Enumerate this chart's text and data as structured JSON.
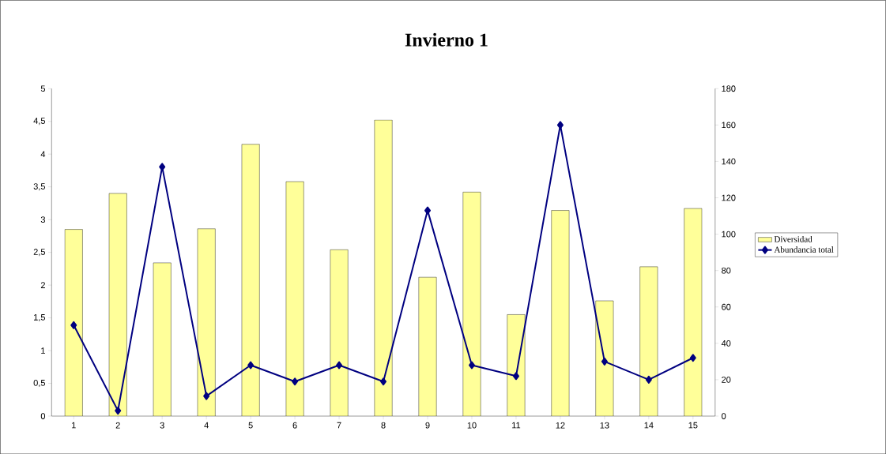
{
  "chart_data": {
    "type": "bar",
    "title": "Invierno 1",
    "categories": [
      "1",
      "2",
      "3",
      "4",
      "5",
      "6",
      "7",
      "8",
      "9",
      "10",
      "11",
      "12",
      "13",
      "14",
      "15"
    ],
    "series": [
      {
        "name": "Diversidad",
        "color": "#ffff99",
        "values": [
          2.85,
          3.4,
          2.34,
          2.86,
          4.15,
          3.58,
          2.54,
          4.52,
          2.12,
          3.42,
          1.55,
          3.14,
          1.76,
          2.28,
          3.17
        ]
      },
      {
        "name": "Abundancia total",
        "type": "line",
        "axis": "y2",
        "color": "#000080",
        "marker": "diamond",
        "values": [
          50,
          3,
          137,
          11,
          28,
          19,
          28,
          19,
          113,
          28,
          22,
          160,
          30,
          20,
          32
        ]
      }
    ],
    "ylim": [
      0,
      5
    ],
    "yticks": [
      0,
      {
        "value": 0.5,
        "label": "0,5"
      },
      1,
      {
        "value": 1.5,
        "label": "1,5"
      },
      2,
      {
        "value": 2.5,
        "label": "2,5"
      },
      3,
      {
        "value": 3.5,
        "label": "3,5"
      },
      4,
      {
        "value": 4.5,
        "label": "4,5"
      },
      5
    ],
    "y2lim": [
      0,
      180
    ],
    "y2ticks": [
      0,
      20,
      40,
      60,
      80,
      100,
      120,
      140,
      160,
      180
    ],
    "legend": "right"
  }
}
